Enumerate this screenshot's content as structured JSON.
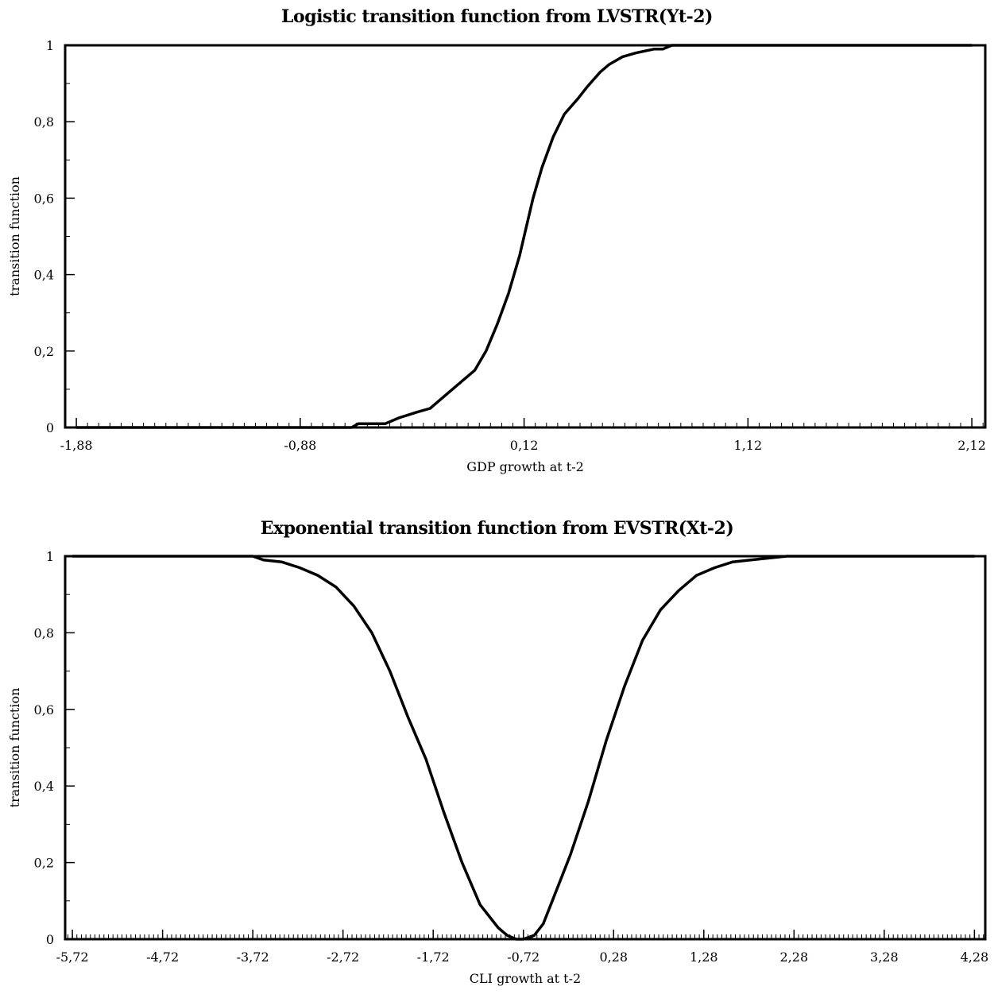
{
  "chart_data": [
    {
      "type": "line",
      "title": "Logistic transition function from LVSTR(Yt-2)",
      "xlabel": "GDP growth at t-2",
      "ylabel": "transition function",
      "xlim": [
        -1.93,
        2.18
      ],
      "ylim": [
        0,
        1
      ],
      "x_ticks": [
        "-1,88",
        "-0,88",
        "0,12",
        "1,12",
        "2,12"
      ],
      "x_tick_values": [
        -1.88,
        -0.88,
        0.12,
        1.12,
        2.12
      ],
      "y_ticks": [
        "0",
        "0,2",
        "0,4",
        "0,6",
        "0,8",
        "1"
      ],
      "y_tick_values": [
        0,
        0.2,
        0.4,
        0.6,
        0.8,
        1
      ],
      "grid": false,
      "series": [
        {
          "x": [
            -1.88,
            -0.65,
            -0.62,
            -0.5,
            -0.44,
            -0.36,
            -0.3,
            -0.2,
            -0.1,
            -0.05,
            0.0,
            0.05,
            0.1,
            0.12,
            0.16,
            0.2,
            0.25,
            0.3,
            0.36,
            0.4,
            0.46,
            0.5,
            0.56,
            0.62,
            0.7,
            0.74,
            0.78,
            0.86,
            2.12
          ],
          "y": [
            0,
            0,
            0.01,
            0.01,
            0.025,
            0.04,
            0.05,
            0.1,
            0.15,
            0.2,
            0.27,
            0.35,
            0.45,
            0.5,
            0.6,
            0.68,
            0.76,
            0.82,
            0.86,
            0.89,
            0.93,
            0.95,
            0.97,
            0.98,
            0.99,
            0.99,
            1.0,
            1.0,
            1.0
          ]
        }
      ]
    },
    {
      "type": "line",
      "title": "Exponential transition function from EVSTR(Xt-2)",
      "xlabel": "CLI growth at t-2",
      "ylabel": "transition function",
      "xlim": [
        -5.8,
        4.4
      ],
      "ylim": [
        0,
        1
      ],
      "x_ticks": [
        "-5,72",
        "-4,72",
        "-3,72",
        "-2,72",
        "-1,72",
        "-0,72",
        "0,28",
        "1,28",
        "2,28",
        "3,28",
        "4,28"
      ],
      "x_tick_values": [
        -5.72,
        -4.72,
        -3.72,
        -2.72,
        -1.72,
        -0.72,
        0.28,
        1.28,
        2.28,
        3.28,
        4.28
      ],
      "y_ticks": [
        "0",
        "0,2",
        "0,4",
        "0,6",
        "0,8",
        "1"
      ],
      "y_tick_values": [
        0,
        0.2,
        0.4,
        0.6,
        0.8,
        1
      ],
      "grid": false,
      "series": [
        {
          "x": [
            -5.72,
            -3.72,
            -3.6,
            -3.4,
            -3.2,
            -3.0,
            -2.8,
            -2.6,
            -2.4,
            -2.2,
            -2.0,
            -1.8,
            -1.6,
            -1.4,
            -1.2,
            -1.0,
            -0.9,
            -0.8,
            -0.72,
            -0.6,
            -0.5,
            -0.4,
            -0.2,
            0.0,
            0.2,
            0.4,
            0.6,
            0.8,
            1.0,
            1.2,
            1.4,
            1.6,
            1.8,
            2.0,
            2.2,
            2.28,
            4.28
          ],
          "y": [
            1.0,
            1.0,
            0.99,
            0.985,
            0.97,
            0.95,
            0.92,
            0.87,
            0.8,
            0.7,
            0.58,
            0.47,
            0.33,
            0.2,
            0.09,
            0.03,
            0.01,
            0.0,
            0.0,
            0.01,
            0.04,
            0.1,
            0.22,
            0.36,
            0.52,
            0.66,
            0.78,
            0.86,
            0.91,
            0.95,
            0.97,
            0.985,
            0.99,
            0.995,
            1.0,
            1.0,
            1.0
          ]
        }
      ]
    }
  ]
}
